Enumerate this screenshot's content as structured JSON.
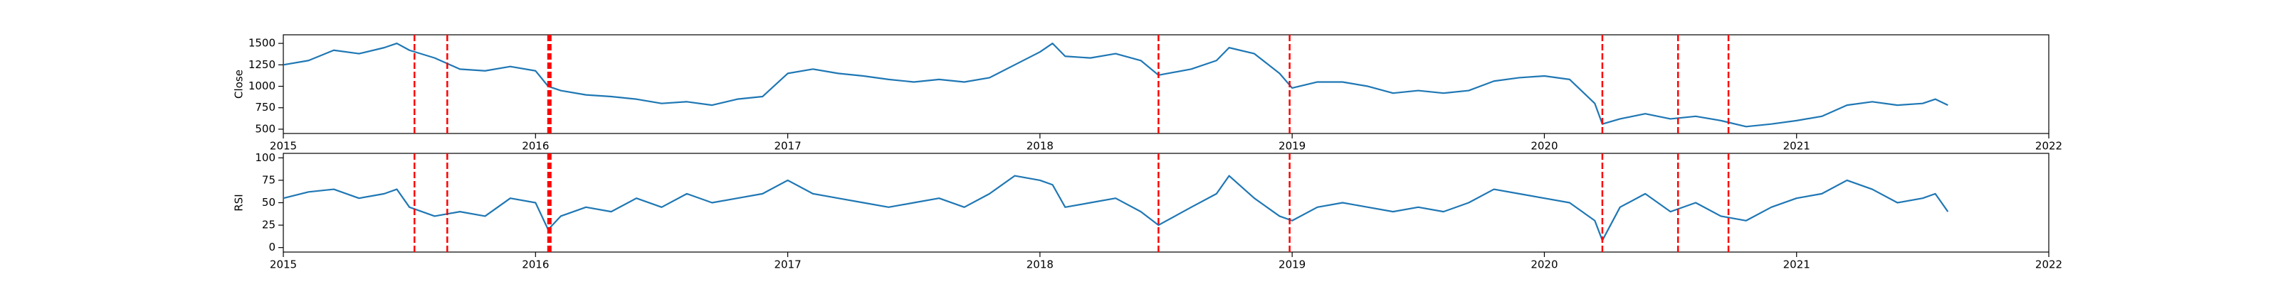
{
  "chart_data": [
    {
      "type": "line",
      "ylabel": "Close",
      "xlim": [
        2015,
        2022
      ],
      "xticks": [
        2015,
        2016,
        2017,
        2018,
        2019,
        2020,
        2021,
        2022
      ],
      "ylim": [
        450,
        1600
      ],
      "yticks": [
        500,
        750,
        1000,
        1250,
        1500
      ],
      "x": [
        2015.0,
        2015.1,
        2015.2,
        2015.3,
        2015.4,
        2015.45,
        2015.5,
        2015.6,
        2015.7,
        2015.8,
        2015.9,
        2016.0,
        2016.05,
        2016.1,
        2016.2,
        2016.3,
        2016.4,
        2016.5,
        2016.6,
        2016.7,
        2016.8,
        2016.9,
        2017.0,
        2017.1,
        2017.2,
        2017.3,
        2017.4,
        2017.5,
        2017.6,
        2017.7,
        2017.8,
        2017.9,
        2018.0,
        2018.05,
        2018.1,
        2018.2,
        2018.3,
        2018.4,
        2018.47,
        2018.6,
        2018.7,
        2018.75,
        2018.85,
        2018.95,
        2019.0,
        2019.1,
        2019.2,
        2019.3,
        2019.4,
        2019.5,
        2019.6,
        2019.7,
        2019.8,
        2019.9,
        2020.0,
        2020.1,
        2020.2,
        2020.23,
        2020.3,
        2020.4,
        2020.5,
        2020.6,
        2020.7,
        2020.8,
        2020.9,
        2021.0,
        2021.1,
        2021.2,
        2021.3,
        2021.4,
        2021.5,
        2021.55,
        2021.6
      ],
      "series": [
        {
          "color": "#1f77b4",
          "values": [
            1250,
            1300,
            1420,
            1380,
            1450,
            1500,
            1420,
            1330,
            1200,
            1180,
            1230,
            1180,
            1000,
            950,
            900,
            880,
            850,
            800,
            820,
            780,
            850,
            880,
            1150,
            1200,
            1150,
            1120,
            1080,
            1050,
            1080,
            1050,
            1100,
            1250,
            1400,
            1500,
            1350,
            1330,
            1380,
            1300,
            1130,
            1200,
            1300,
            1450,
            1380,
            1150,
            980,
            1050,
            1050,
            1000,
            920,
            950,
            920,
            950,
            1060,
            1100,
            1120,
            1080,
            800,
            560,
            620,
            680,
            620,
            650,
            600,
            530,
            560,
            600,
            650,
            780,
            820,
            780,
            800,
            850,
            780
          ]
        }
      ],
      "vlines": {
        "color": "#ff0000",
        "x": [
          2015.52,
          2015.65,
          2016.05,
          2016.055,
          2016.06,
          2018.47,
          2018.99,
          2020.23,
          2020.53,
          2020.73
        ]
      }
    },
    {
      "type": "line",
      "ylabel": "RSI",
      "xlim": [
        2015,
        2022
      ],
      "xticks": [
        2015,
        2016,
        2017,
        2018,
        2019,
        2020,
        2021,
        2022
      ],
      "ylim": [
        -5,
        105
      ],
      "yticks": [
        0,
        25,
        50,
        75,
        100
      ],
      "x": [
        2015.0,
        2015.1,
        2015.2,
        2015.3,
        2015.4,
        2015.45,
        2015.5,
        2015.6,
        2015.7,
        2015.8,
        2015.9,
        2016.0,
        2016.05,
        2016.1,
        2016.2,
        2016.3,
        2016.4,
        2016.5,
        2016.6,
        2016.7,
        2016.8,
        2016.9,
        2017.0,
        2017.1,
        2017.2,
        2017.3,
        2017.4,
        2017.5,
        2017.6,
        2017.7,
        2017.8,
        2017.9,
        2018.0,
        2018.05,
        2018.1,
        2018.2,
        2018.3,
        2018.4,
        2018.47,
        2018.6,
        2018.7,
        2018.75,
        2018.85,
        2018.95,
        2019.0,
        2019.1,
        2019.2,
        2019.3,
        2019.4,
        2019.5,
        2019.6,
        2019.7,
        2019.8,
        2019.9,
        2020.0,
        2020.1,
        2020.2,
        2020.23,
        2020.3,
        2020.4,
        2020.5,
        2020.6,
        2020.7,
        2020.8,
        2020.9,
        2021.0,
        2021.1,
        2021.2,
        2021.3,
        2021.4,
        2021.5,
        2021.55,
        2021.6
      ],
      "series": [
        {
          "color": "#1f77b4",
          "values": [
            55,
            62,
            65,
            55,
            60,
            65,
            45,
            35,
            40,
            35,
            55,
            50,
            20,
            35,
            45,
            40,
            55,
            45,
            60,
            50,
            55,
            60,
            75,
            60,
            55,
            50,
            45,
            50,
            55,
            45,
            60,
            80,
            75,
            70,
            45,
            50,
            55,
            40,
            25,
            45,
            60,
            80,
            55,
            35,
            30,
            45,
            50,
            45,
            40,
            45,
            40,
            50,
            65,
            60,
            55,
            50,
            30,
            8,
            45,
            60,
            40,
            50,
            35,
            30,
            45,
            55,
            60,
            75,
            65,
            50,
            55,
            60,
            40
          ]
        }
      ],
      "vlines": {
        "color": "#ff0000",
        "x": [
          2015.52,
          2015.65,
          2016.05,
          2016.055,
          2016.06,
          2018.47,
          2018.99,
          2020.23,
          2020.53,
          2020.73
        ]
      }
    }
  ]
}
